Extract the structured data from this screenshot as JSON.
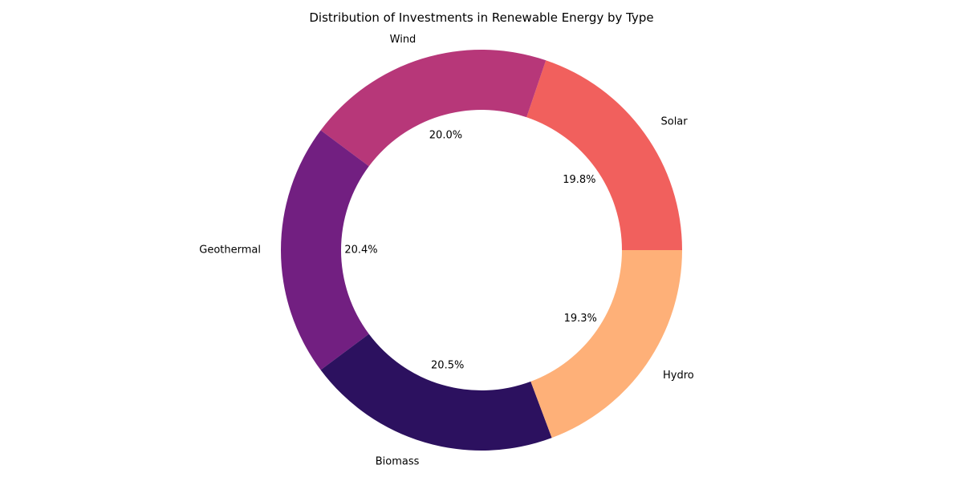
{
  "chart_data": {
    "type": "pie",
    "variant": "donut",
    "title": "Distribution of Investments in Renewable Energy by Type",
    "legend": "none",
    "slices": [
      {
        "label": "Solar",
        "percent": 19.8,
        "pct_label": "19.8%",
        "color": "#f1605d"
      },
      {
        "label": "Wind",
        "percent": 20.0,
        "pct_label": "20.0%",
        "color": "#b73779"
      },
      {
        "label": "Geothermal",
        "percent": 20.4,
        "pct_label": "20.4%",
        "color": "#721f81"
      },
      {
        "label": "Biomass",
        "percent": 20.5,
        "pct_label": "20.5%",
        "color": "#2c115f"
      },
      {
        "label": "Hydro",
        "percent": 19.3,
        "pct_label": "19.3%",
        "color": "#feb078"
      }
    ]
  }
}
